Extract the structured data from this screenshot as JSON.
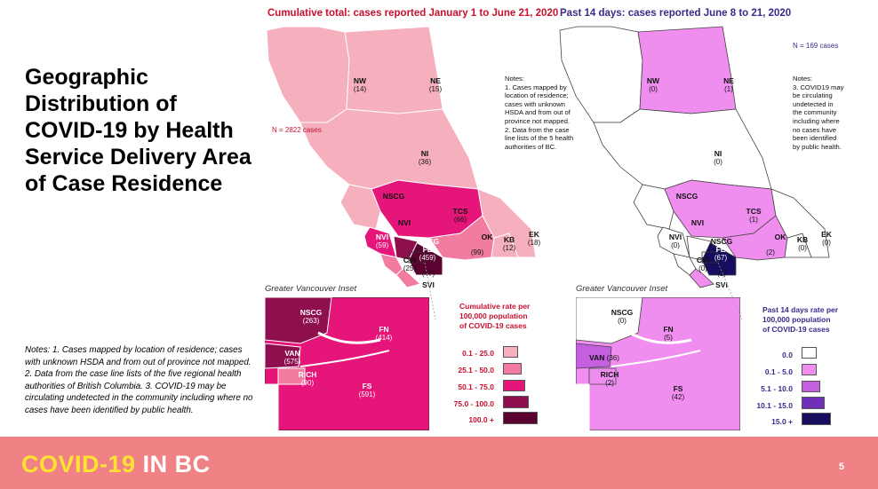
{
  "slide": {
    "title": "Geographic Distribution of COVID-19 by Health Service Delivery Area of Case Residence",
    "left_notes": "Notes: 1. Cases mapped by location of residence; cases with unknown HSDA and from out of province not mapped. 2. Data from the case line lists of the five regional health authorities of British Columbia. 3. COVID-19 may be circulating undetected in the community including where no cases have been identified by public health.",
    "footer_logo_part1": "COVID-19",
    "footer_logo_part2": "IN BC",
    "page_number": "5",
    "footer_color": "#f08184",
    "logo_color": "#ffe234"
  },
  "cumulative": {
    "title": "Cumulative total: cases reported January 1 to June 21, 2020",
    "n_cases": "N = 2822 cases",
    "notes": "Notes:\n1. Cases mapped by\nlocation of residence;\ncases with unknown\nHSDA and from out of\nprovince not mapped.\n2. Data from the case\nline lists of the 5 health\nauthorities of BC.",
    "inset_title": "Greater Vancouver Inset",
    "legend_title": "Cumulative rate per\n100,000 population\nof COVID-19 cases",
    "legend": [
      {
        "label": "0.1 - 25.0",
        "color": "#f6b0bd"
      },
      {
        "label": "25.1 - 50.0",
        "color": "#f27ba0"
      },
      {
        "label": "50.1 - 75.0",
        "color": "#e5157a"
      },
      {
        "label": "75.0 - 100.0",
        "color": "#8e0f4e"
      },
      {
        "label": "100.0 +",
        "color": "#5a0330"
      }
    ],
    "areas": [
      {
        "code": "NW",
        "count": "(14)"
      },
      {
        "code": "NE",
        "count": "(15)"
      },
      {
        "code": "NI",
        "count": "(36)"
      },
      {
        "code": "NSCG",
        "count": ""
      },
      {
        "code": "TCS",
        "count": "(66)"
      },
      {
        "code": "NVI",
        "count": ""
      },
      {
        "code": "NVI",
        "count": "(59)"
      },
      {
        "code": "NSCG",
        "count": ""
      },
      {
        "code": "FE",
        "count": "(459)"
      },
      {
        "code": "OK",
        "count": "(99)"
      },
      {
        "code": "KB",
        "count": "(12)"
      },
      {
        "code": "EK",
        "count": "(18)"
      },
      {
        "code": "CVI",
        "count": "(25)"
      },
      {
        "code": "",
        "count": "(47)"
      },
      {
        "code": "SVI",
        "count": ""
      }
    ],
    "inset_areas": [
      {
        "code": "NSCG",
        "count": "(263)"
      },
      {
        "code": "FN",
        "count": "(414)"
      },
      {
        "code": "VAN",
        "count": "(575)"
      },
      {
        "code": "RICH",
        "count": "(90)"
      },
      {
        "code": "FS",
        "count": "(591)"
      }
    ]
  },
  "past14": {
    "title": "Past 14 days: cases reported June 8 to 21, 2020",
    "n_cases": "N = 169 cases",
    "notes": "Notes:\n3. COVID19 may\nbe circulating\nundetected in\nthe community\nincluding where\nno cases have\nbeen identified\nby public health.",
    "inset_title": "Greater Vancouver Inset",
    "legend_title": "Past 14 days rate per\n100,000 population\nof COVID-19 cases",
    "legend": [
      {
        "label": "0.0",
        "color": "#ffffff"
      },
      {
        "label": "0.1 - 5.0",
        "color": "#f08ef0"
      },
      {
        "label": "5.1 - 10.0",
        "color": "#c45fe0"
      },
      {
        "label": "10.1 - 15.0",
        "color": "#6f2fb8"
      },
      {
        "label": "15.0 +",
        "color": "#160d5e"
      }
    ],
    "areas": [
      {
        "code": "NW",
        "count": "(0)"
      },
      {
        "code": "NE",
        "count": "(1)"
      },
      {
        "code": "NI",
        "count": "(0)"
      },
      {
        "code": "NSCG",
        "count": ""
      },
      {
        "code": "TCS",
        "count": "(1)"
      },
      {
        "code": "NVI",
        "count": ""
      },
      {
        "code": "NVI",
        "count": "(0)"
      },
      {
        "code": "NSCG",
        "count": ""
      },
      {
        "code": "FE",
        "count": "(67)"
      },
      {
        "code": "OK",
        "count": "(2)"
      },
      {
        "code": "KB",
        "count": "(0)"
      },
      {
        "code": "EK",
        "count": "(0)"
      },
      {
        "code": "CVI",
        "count": "(0)"
      },
      {
        "code": "",
        "count": "(1)"
      },
      {
        "code": "SVI",
        "count": ""
      }
    ],
    "inset_areas": [
      {
        "code": "NSCG",
        "count": "(0)"
      },
      {
        "code": "FN",
        "count": "(5)"
      },
      {
        "code": "VAN",
        "count": "(36)"
      },
      {
        "code": "RICH",
        "count": "(2)"
      },
      {
        "code": "FS",
        "count": "(42)"
      }
    ]
  }
}
